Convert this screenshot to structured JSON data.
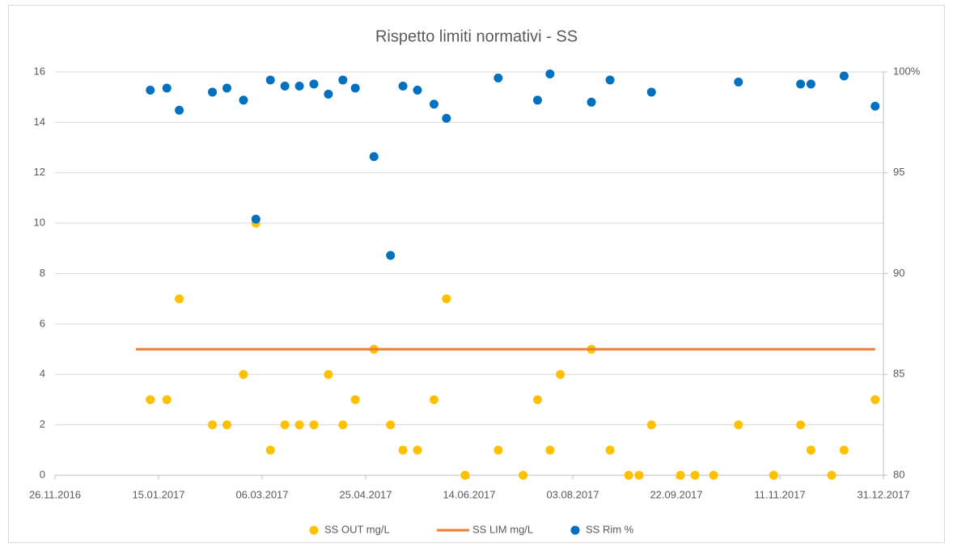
{
  "chart_data": {
    "type": "scatter",
    "title": "Rispetto limiti normativi - SS",
    "xlim": [
      "2016-11-26",
      "2017-12-31"
    ],
    "xticks": [
      {
        "value": "2016-11-26",
        "label": "26.11.2016"
      },
      {
        "value": "2017-01-15",
        "label": "15.01.2017"
      },
      {
        "value": "2017-03-06",
        "label": "06.03.2017"
      },
      {
        "value": "2017-04-25",
        "label": "25.04.2017"
      },
      {
        "value": "2017-06-14",
        "label": "14.06.2017"
      },
      {
        "value": "2017-08-03",
        "label": "03.08.2017"
      },
      {
        "value": "2017-09-22",
        "label": "22.09.2017"
      },
      {
        "value": "2017-11-11",
        "label": "11.11.2017"
      },
      {
        "value": "2017-12-31",
        "label": "31.12.2017"
      }
    ],
    "ylim": [
      0,
      16
    ],
    "yticks": [
      0,
      2,
      4,
      6,
      8,
      10,
      12,
      14,
      16
    ],
    "y2lim": [
      80,
      100
    ],
    "y2ticks": [
      80,
      85,
      90,
      95,
      {
        "value": 100,
        "label": "100%"
      }
    ],
    "grid": true,
    "legend": "bottom",
    "series": [
      {
        "name": "SS OUT mg/L",
        "color": "#FFC000",
        "kind": "markers",
        "x": [
          "2017-01-11",
          "2017-01-19",
          "2017-01-25",
          "2017-02-10",
          "2017-02-17",
          "2017-02-25",
          "2017-03-03",
          "2017-03-10",
          "2017-03-17",
          "2017-03-24",
          "2017-03-31",
          "2017-04-07",
          "2017-04-14",
          "2017-04-20",
          "2017-04-29",
          "2017-05-07",
          "2017-05-13",
          "2017-05-20",
          "2017-05-28",
          "2017-06-03",
          "2017-06-12",
          "2017-06-28",
          "2017-07-10",
          "2017-07-17",
          "2017-07-23",
          "2017-07-28",
          "2017-08-12",
          "2017-08-21",
          "2017-08-30",
          "2017-09-04",
          "2017-09-10",
          "2017-09-24",
          "2017-10-01",
          "2017-10-10",
          "2017-10-22",
          "2017-11-08",
          "2017-11-21",
          "2017-11-26",
          "2017-12-06",
          "2017-12-12",
          "2017-12-27"
        ],
        "values": [
          3,
          3,
          7,
          2,
          2,
          4,
          10,
          1,
          2,
          2,
          2,
          4,
          2,
          3,
          5,
          2,
          1,
          1,
          3,
          7,
          0,
          1,
          0,
          3,
          1,
          4,
          5,
          1,
          0,
          0,
          2,
          0,
          0,
          0,
          2,
          0,
          2,
          1,
          0,
          1,
          3
        ]
      },
      {
        "name": "SS LIM mg/L",
        "color": "#ED7D31",
        "kind": "line",
        "x": [
          "2017-01-04",
          "2017-12-27"
        ],
        "values": [
          5,
          5
        ]
      },
      {
        "name": "SS Rim %",
        "color": "#0070C0",
        "kind": "markers",
        "axis": "y2",
        "x": [
          "2017-01-11",
          "2017-01-19",
          "2017-01-25",
          "2017-02-10",
          "2017-02-17",
          "2017-02-25",
          "2017-03-03",
          "2017-03-10",
          "2017-03-17",
          "2017-03-24",
          "2017-03-31",
          "2017-04-07",
          "2017-04-14",
          "2017-04-20",
          "2017-04-29",
          "2017-05-07",
          "2017-05-13",
          "2017-05-20",
          "2017-05-28",
          "2017-06-03",
          "2017-06-28",
          "2017-07-17",
          "2017-07-23",
          "2017-08-12",
          "2017-08-21",
          "2017-09-10",
          "2017-10-22",
          "2017-11-21",
          "2017-11-26",
          "2017-12-12",
          "2017-12-27"
        ],
        "values": [
          99.1,
          99.2,
          98.1,
          99.0,
          99.2,
          98.6,
          92.7,
          99.6,
          99.3,
          99.3,
          99.4,
          98.9,
          99.6,
          99.2,
          95.8,
          90.9,
          99.3,
          99.1,
          98.4,
          97.7,
          99.7,
          98.6,
          99.9,
          98.5,
          99.6,
          99.0,
          99.5,
          99.4,
          99.4,
          99.8,
          98.3
        ]
      }
    ]
  }
}
